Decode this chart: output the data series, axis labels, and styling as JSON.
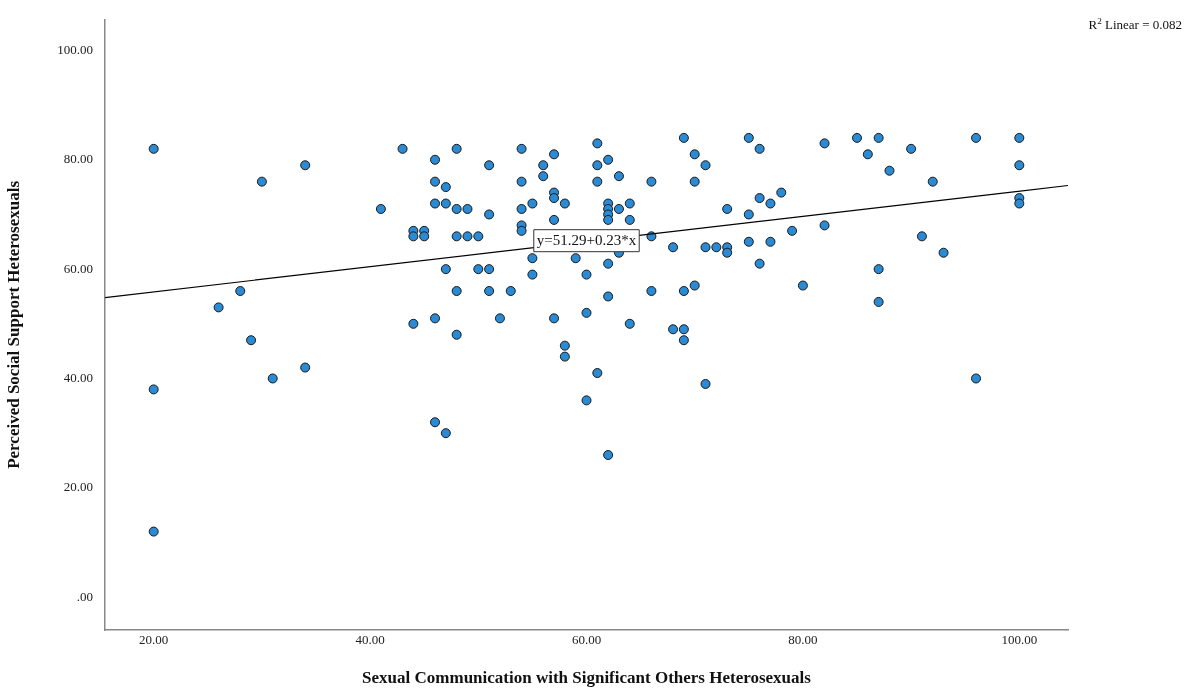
{
  "chart_data": {
    "type": "scatter",
    "xlabel": "Sexual Communication with Significant Others Heterosexuals",
    "ylabel": "Perceived Social Support Heterosexuals",
    "xlim": [
      15.5,
      104.5
    ],
    "ylim": [
      -6,
      105.6
    ],
    "xticks": [
      {
        "value": 20,
        "label": "20.00"
      },
      {
        "value": 40,
        "label": "40.00"
      },
      {
        "value": 60,
        "label": "60.00"
      },
      {
        "value": 80,
        "label": "80.00"
      },
      {
        "value": 100,
        "label": "100.00"
      }
    ],
    "yticks": [
      {
        "value": 0,
        "label": ".00"
      },
      {
        "value": 20,
        "label": "20.00"
      },
      {
        "value": 40,
        "label": "40.00"
      },
      {
        "value": 60,
        "label": "60.00"
      },
      {
        "value": 80,
        "label": "80.00"
      },
      {
        "value": 100,
        "label": "100.00"
      }
    ],
    "grid": false,
    "legend": false,
    "marker": "circle",
    "annotations": [
      {
        "text": "y=51.29+0.23*x",
        "x": 60,
        "y": 65.2
      },
      "R$^{2}$ Linear = 0.082"
    ],
    "series": [
      {
        "color": "#2a8ad4",
        "x": [
          20,
          20,
          20,
          43,
          46,
          48,
          30,
          34,
          46,
          47,
          46,
          47,
          48,
          41,
          44,
          45,
          44,
          45,
          48,
          47,
          48,
          28,
          26,
          29,
          31,
          34,
          44,
          46,
          48,
          46,
          47,
          54,
          51,
          57,
          56,
          56,
          61,
          61,
          62,
          63,
          61,
          66,
          54,
          69,
          70,
          71,
          70,
          75,
          76,
          49,
          51,
          54,
          55,
          57,
          57,
          58,
          62,
          62,
          62,
          62,
          63,
          64,
          64,
          57,
          54,
          54,
          49,
          50,
          66,
          55,
          55,
          59,
          62,
          63,
          60,
          50,
          51,
          51,
          53,
          57,
          60,
          62,
          64,
          66,
          69,
          70,
          68,
          69,
          69,
          68,
          71,
          72,
          73,
          73,
          75,
          75,
          76,
          76,
          73,
          52,
          58,
          58,
          61,
          60,
          71,
          62,
          77,
          78,
          79,
          77,
          80,
          82,
          82,
          85,
          86,
          87,
          88,
          90,
          92,
          91,
          93,
          87,
          87,
          96,
          96,
          100,
          100,
          100,
          100
        ],
        "values": [
          82,
          38,
          12,
          82,
          80,
          82,
          76,
          79,
          76,
          75,
          72,
          72,
          71,
          71,
          67,
          67,
          66,
          66,
          66,
          60,
          56,
          56,
          53,
          47,
          40,
          42,
          50,
          51,
          48,
          32,
          30,
          82,
          79,
          81,
          79,
          77,
          83,
          79,
          80,
          77,
          76,
          76,
          76,
          84,
          81,
          79,
          76,
          84,
          82,
          71,
          70,
          71,
          72,
          74,
          73,
          72,
          72,
          71,
          70,
          69,
          71,
          72,
          69,
          69,
          68,
          67,
          66,
          66,
          66,
          62,
          59,
          62,
          61,
          63,
          59,
          60,
          60,
          56,
          56,
          51,
          52,
          55,
          50,
          56,
          56,
          57,
          49,
          49,
          47,
          64,
          64,
          64,
          64,
          63,
          65,
          70,
          73,
          61,
          71,
          51,
          46,
          44,
          41,
          36,
          39,
          26,
          72,
          74,
          67,
          65,
          57,
          83,
          68,
          84,
          81,
          84,
          78,
          82,
          76,
          66,
          63,
          60,
          54,
          84,
          40,
          84,
          79,
          73,
          72
        ]
      },
      {
        "type": "line",
        "marker": "none",
        "color": "#000000",
        "x": [
          15.5,
          104.5
        ],
        "values": [
          54.8,
          75.3
        ]
      }
    ]
  }
}
